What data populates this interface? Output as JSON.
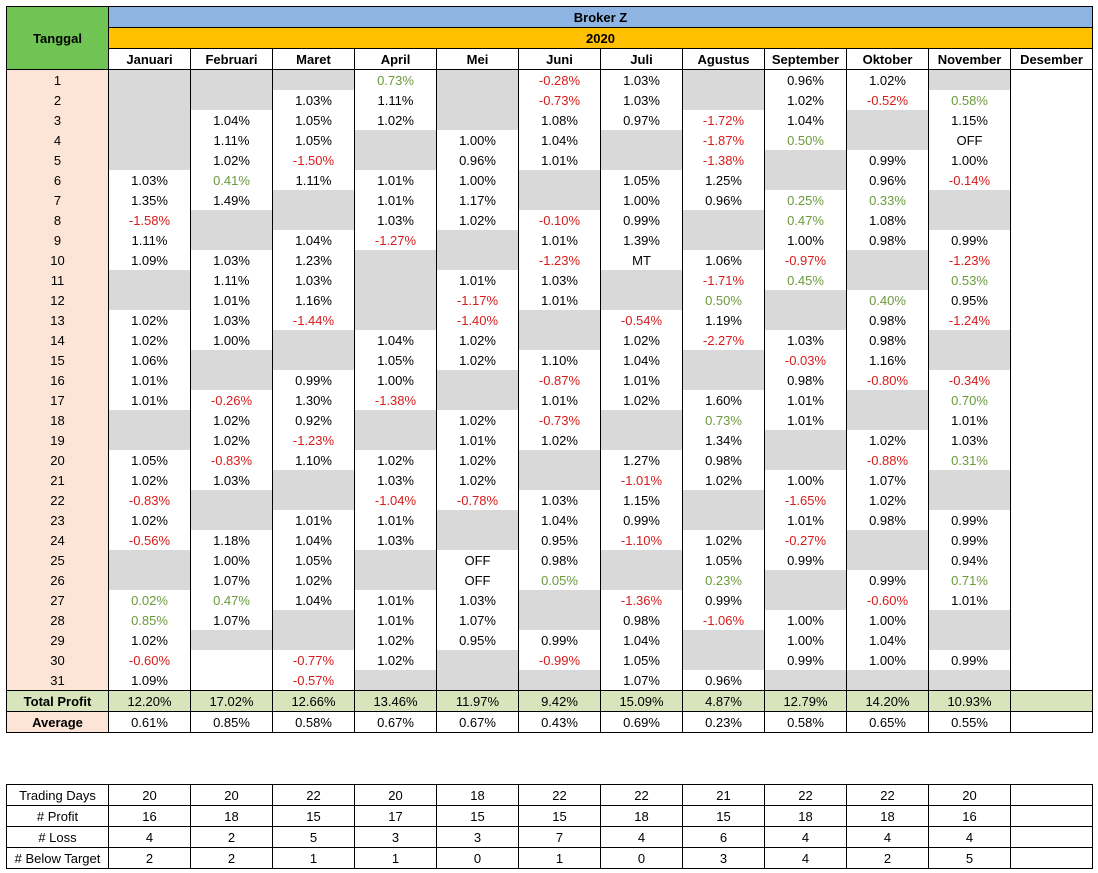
{
  "broker": "Broker Z",
  "year": "2020",
  "tanggal_label": "Tanggal",
  "months": [
    "Januari",
    "Februari",
    "Maret",
    "April",
    "Mei",
    "Juni",
    "Juli",
    "Agustus",
    "September",
    "Oktober",
    "November",
    "Desember"
  ],
  "days": [
    [
      "",
      "",
      "",
      "0.73%",
      "",
      "-0.28%",
      "1.03%",
      "",
      "0.96%",
      "1.02%",
      "",
      ""
    ],
    [
      "",
      "",
      "1.03%",
      "1.11%",
      "",
      "-0.73%",
      "1.03%",
      "",
      "1.02%",
      "-0.52%",
      "0.58%",
      ""
    ],
    [
      "",
      "1.04%",
      "1.05%",
      "1.02%",
      "",
      "1.08%",
      "0.97%",
      "-1.72%",
      "1.04%",
      "",
      "1.15%",
      ""
    ],
    [
      "",
      "1.11%",
      "1.05%",
      "",
      "1.00%",
      "1.04%",
      "",
      "-1.87%",
      "0.50%",
      "",
      "OFF",
      ""
    ],
    [
      "",
      "1.02%",
      "-1.50%",
      "",
      "0.96%",
      "1.01%",
      "",
      "-1.38%",
      "",
      "0.99%",
      "1.00%",
      ""
    ],
    [
      "1.03%",
      "0.41%",
      "1.11%",
      "1.01%",
      "1.00%",
      "",
      "1.05%",
      "1.25%",
      "",
      "0.96%",
      "-0.14%",
      ""
    ],
    [
      "1.35%",
      "1.49%",
      "",
      "1.01%",
      "1.17%",
      "",
      "1.00%",
      "0.96%",
      "0.25%",
      "0.33%",
      "",
      ""
    ],
    [
      "-1.58%",
      "",
      "",
      "1.03%",
      "1.02%",
      "-0.10%",
      "0.99%",
      "",
      "0.47%",
      "1.08%",
      "",
      ""
    ],
    [
      "1.11%",
      "",
      "1.04%",
      "-1.27%",
      "",
      "1.01%",
      "1.39%",
      "",
      "1.00%",
      "0.98%",
      "0.99%",
      ""
    ],
    [
      "1.09%",
      "1.03%",
      "1.23%",
      "",
      "",
      "-1.23%",
      "MT",
      "1.06%",
      "-0.97%",
      "",
      "-1.23%",
      ""
    ],
    [
      "",
      "1.11%",
      "1.03%",
      "",
      "1.01%",
      "1.03%",
      "",
      "-1.71%",
      "0.45%",
      "",
      "0.53%",
      ""
    ],
    [
      "",
      "1.01%",
      "1.16%",
      "",
      "-1.17%",
      "1.01%",
      "",
      "0.50%",
      "",
      "0.40%",
      "0.95%",
      ""
    ],
    [
      "1.02%",
      "1.03%",
      "-1.44%",
      "",
      "-1.40%",
      "",
      "-0.54%",
      "1.19%",
      "",
      "0.98%",
      "-1.24%",
      ""
    ],
    [
      "1.02%",
      "1.00%",
      "",
      "1.04%",
      "1.02%",
      "",
      "1.02%",
      "-2.27%",
      "1.03%",
      "0.98%",
      "",
      ""
    ],
    [
      "1.06%",
      "",
      "",
      "1.05%",
      "1.02%",
      "1.10%",
      "1.04%",
      "",
      "-0.03%",
      "1.16%",
      "",
      ""
    ],
    [
      "1.01%",
      "",
      "0.99%",
      "1.00%",
      "",
      "-0.87%",
      "1.01%",
      "",
      "0.98%",
      "-0.80%",
      "-0.34%",
      ""
    ],
    [
      "1.01%",
      "-0.26%",
      "1.30%",
      "-1.38%",
      "",
      "1.01%",
      "1.02%",
      "1.60%",
      "1.01%",
      "",
      "0.70%",
      ""
    ],
    [
      "",
      "1.02%",
      "0.92%",
      "",
      "1.02%",
      "-0.73%",
      "",
      "0.73%",
      "1.01%",
      "",
      "1.01%",
      ""
    ],
    [
      "",
      "1.02%",
      "-1.23%",
      "",
      "1.01%",
      "1.02%",
      "",
      "1.34%",
      "",
      "1.02%",
      "1.03%",
      ""
    ],
    [
      "1.05%",
      "-0.83%",
      "1.10%",
      "1.02%",
      "1.02%",
      "",
      "1.27%",
      "0.98%",
      "",
      "-0.88%",
      "0.31%",
      ""
    ],
    [
      "1.02%",
      "1.03%",
      "",
      "1.03%",
      "1.02%",
      "",
      "-1.01%",
      "1.02%",
      "1.00%",
      "1.07%",
      "",
      ""
    ],
    [
      "-0.83%",
      "",
      "",
      "-1.04%",
      "-0.78%",
      "1.03%",
      "1.15%",
      "",
      "-1.65%",
      "1.02%",
      "",
      ""
    ],
    [
      "1.02%",
      "",
      "1.01%",
      "1.01%",
      "",
      "1.04%",
      "0.99%",
      "",
      "1.01%",
      "0.98%",
      "0.99%",
      ""
    ],
    [
      "-0.56%",
      "1.18%",
      "1.04%",
      "1.03%",
      "",
      "0.95%",
      "-1.10%",
      "1.02%",
      "-0.27%",
      "",
      "0.99%",
      ""
    ],
    [
      "",
      "1.00%",
      "1.05%",
      "",
      "OFF",
      "0.98%",
      "",
      "1.05%",
      "0.99%",
      "",
      "0.94%",
      ""
    ],
    [
      "",
      "1.07%",
      "1.02%",
      "",
      "OFF",
      "0.05%",
      "",
      "0.23%",
      "",
      "0.99%",
      "0.71%",
      ""
    ],
    [
      "0.02%",
      "0.47%",
      "1.04%",
      "1.01%",
      "1.03%",
      "",
      "-1.36%",
      "0.99%",
      "",
      "-0.60%",
      "1.01%",
      ""
    ],
    [
      "0.85%",
      "1.07%",
      "",
      "1.01%",
      "1.07%",
      "",
      "0.98%",
      "-1.06%",
      "1.00%",
      "1.00%",
      "",
      ""
    ],
    [
      "1.02%",
      "",
      "",
      "1.02%",
      "0.95%",
      "0.99%",
      "1.04%",
      "",
      "1.00%",
      "1.04%",
      "",
      ""
    ],
    [
      "-0.60%",
      "",
      "-0.77%",
      "1.02%",
      "",
      "-0.99%",
      "1.05%",
      "",
      "0.99%",
      "1.00%",
      "0.99%",
      ""
    ],
    [
      "1.09%",
      "",
      "-0.57%",
      "",
      "",
      "",
      "1.07%",
      "0.96%",
      "",
      "",
      "",
      ""
    ]
  ],
  "gray": [
    [
      1,
      1,
      1,
      0,
      1,
      0,
      0,
      1,
      0,
      0,
      1,
      0
    ],
    [
      1,
      1,
      0,
      0,
      1,
      0,
      0,
      1,
      0,
      0,
      0,
      0
    ],
    [
      1,
      0,
      0,
      0,
      1,
      0,
      0,
      0,
      0,
      1,
      0,
      0
    ],
    [
      1,
      0,
      0,
      1,
      0,
      0,
      1,
      0,
      0,
      1,
      0,
      0
    ],
    [
      1,
      0,
      0,
      1,
      0,
      0,
      1,
      0,
      1,
      0,
      0,
      0
    ],
    [
      0,
      0,
      0,
      0,
      0,
      1,
      0,
      0,
      1,
      0,
      0,
      0
    ],
    [
      0,
      0,
      1,
      0,
      0,
      1,
      0,
      0,
      0,
      0,
      1,
      0
    ],
    [
      0,
      1,
      1,
      0,
      0,
      0,
      0,
      1,
      0,
      0,
      1,
      0
    ],
    [
      0,
      1,
      0,
      0,
      1,
      0,
      0,
      1,
      0,
      0,
      0,
      0
    ],
    [
      0,
      0,
      0,
      1,
      1,
      0,
      0,
      0,
      0,
      1,
      0,
      0
    ],
    [
      1,
      0,
      0,
      1,
      0,
      0,
      1,
      0,
      0,
      1,
      0,
      0
    ],
    [
      1,
      0,
      0,
      1,
      0,
      0,
      1,
      0,
      1,
      0,
      0,
      0
    ],
    [
      0,
      0,
      0,
      1,
      0,
      1,
      0,
      0,
      1,
      0,
      0,
      0
    ],
    [
      0,
      0,
      1,
      0,
      0,
      1,
      0,
      0,
      0,
      0,
      1,
      0
    ],
    [
      0,
      1,
      1,
      0,
      0,
      0,
      0,
      1,
      0,
      0,
      1,
      0
    ],
    [
      0,
      1,
      0,
      0,
      1,
      0,
      0,
      1,
      0,
      0,
      0,
      0
    ],
    [
      0,
      0,
      0,
      0,
      1,
      0,
      0,
      0,
      0,
      1,
      0,
      0
    ],
    [
      1,
      0,
      0,
      1,
      0,
      0,
      1,
      0,
      0,
      1,
      0,
      0
    ],
    [
      1,
      0,
      0,
      1,
      0,
      0,
      1,
      0,
      1,
      0,
      0,
      0
    ],
    [
      0,
      0,
      0,
      0,
      0,
      1,
      0,
      0,
      1,
      0,
      0,
      0
    ],
    [
      0,
      0,
      1,
      0,
      0,
      1,
      0,
      0,
      0,
      0,
      1,
      0
    ],
    [
      0,
      1,
      1,
      0,
      0,
      0,
      0,
      1,
      0,
      0,
      1,
      0
    ],
    [
      0,
      1,
      0,
      0,
      1,
      0,
      0,
      1,
      0,
      0,
      0,
      0
    ],
    [
      0,
      0,
      0,
      0,
      1,
      0,
      0,
      0,
      0,
      1,
      0,
      0
    ],
    [
      1,
      0,
      0,
      1,
      0,
      0,
      1,
      0,
      0,
      1,
      0,
      0
    ],
    [
      1,
      0,
      0,
      1,
      0,
      0,
      1,
      0,
      1,
      0,
      0,
      0
    ],
    [
      0,
      0,
      0,
      0,
      0,
      1,
      0,
      0,
      1,
      0,
      0,
      0
    ],
    [
      0,
      0,
      1,
      0,
      0,
      1,
      0,
      0,
      0,
      0,
      1,
      0
    ],
    [
      0,
      1,
      1,
      0,
      0,
      0,
      0,
      1,
      0,
      0,
      1,
      0
    ],
    [
      0,
      0,
      0,
      0,
      1,
      0,
      0,
      1,
      0,
      0,
      0,
      0
    ],
    [
      0,
      0,
      0,
      1,
      1,
      1,
      0,
      0,
      1,
      1,
      1,
      0
    ]
  ],
  "total_profit_label": "Total Profit",
  "total_profit": [
    "12.20%",
    "17.02%",
    "12.66%",
    "13.46%",
    "11.97%",
    "9.42%",
    "15.09%",
    "4.87%",
    "12.79%",
    "14.20%",
    "10.93%",
    ""
  ],
  "average_label": "Average",
  "average": [
    "0.61%",
    "0.85%",
    "0.58%",
    "0.67%",
    "0.67%",
    "0.43%",
    "0.69%",
    "0.23%",
    "0.58%",
    "0.65%",
    "0.55%",
    ""
  ],
  "stats": [
    {
      "label": "Trading Days",
      "style": "plain",
      "values": [
        "20",
        "20",
        "22",
        "20",
        "18",
        "22",
        "22",
        "21",
        "22",
        "22",
        "20",
        ""
      ]
    },
    {
      "label": "# Profit",
      "style": "plain",
      "values": [
        "16",
        "18",
        "15",
        "17",
        "15",
        "15",
        "18",
        "15",
        "18",
        "18",
        "16",
        ""
      ]
    },
    {
      "label": "# Loss",
      "style": "red",
      "values": [
        "4",
        "2",
        "5",
        "3",
        "3",
        "7",
        "4",
        "6",
        "4",
        "4",
        "4",
        ""
      ]
    },
    {
      "label": "# Below Target",
      "style": "green",
      "values": [
        "2",
        "2",
        "1",
        "1",
        "0",
        "1",
        "0",
        "3",
        "4",
        "2",
        "5",
        ""
      ]
    }
  ],
  "colors": {
    "header_blue": "#8db4e2",
    "header_orange": "#ffc000",
    "tanggal_green": "#70c454",
    "day_peach": "#fce4d6",
    "weekend_gray": "#d9d9d9",
    "total_green": "#d8e4bc",
    "loss_red": "#d91a1a",
    "low_profit_green": "#6a9a3b"
  }
}
